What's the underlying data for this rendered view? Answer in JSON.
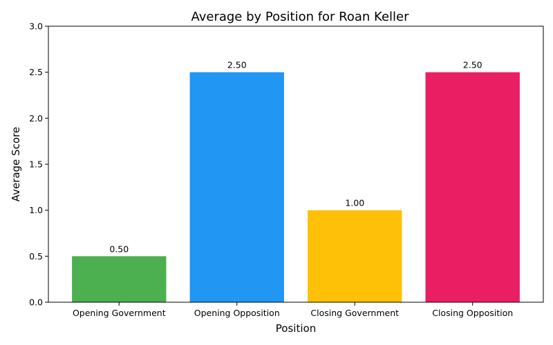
{
  "chart_data": {
    "type": "bar",
    "title": "Average by Position for Roan Keller",
    "xlabel": "Position",
    "ylabel": "Average Score",
    "categories": [
      "Opening Government",
      "Opening Opposition",
      "Closing Government",
      "Closing Opposition"
    ],
    "values": [
      0.5,
      2.5,
      1.0,
      2.5
    ],
    "data_labels": [
      "0.50",
      "2.50",
      "1.00",
      "2.50"
    ],
    "colors": [
      "#4caf50",
      "#2196f3",
      "#ffc107",
      "#e91e63"
    ],
    "ylim": [
      0,
      3
    ],
    "yticks": [
      0,
      0.5,
      1,
      1.5,
      2,
      2.5,
      3
    ],
    "ytick_labels": [
      "0.0",
      "0.5",
      "1.0",
      "1.5",
      "2.0",
      "2.5",
      "3.0"
    ],
    "grid": false,
    "legend": "none"
  }
}
